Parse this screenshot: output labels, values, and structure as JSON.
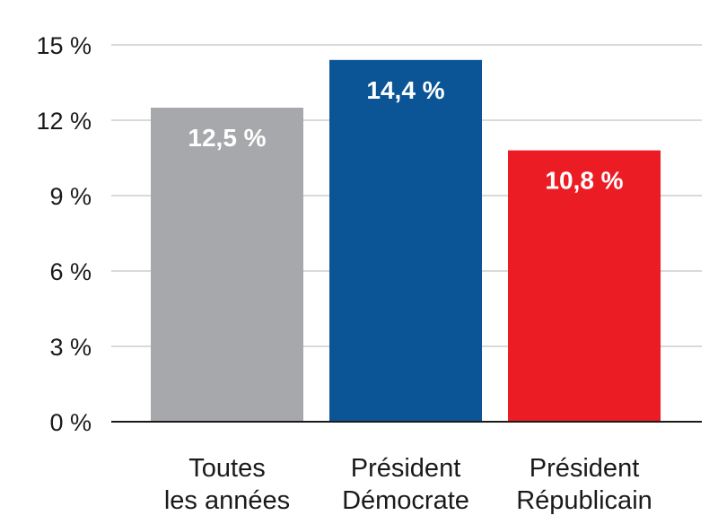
{
  "chart_data": {
    "type": "bar",
    "categories": [
      [
        "Toutes",
        "les années"
      ],
      [
        "Président",
        "Démocrate"
      ],
      [
        "Président",
        "Républicain"
      ]
    ],
    "values": [
      12.5,
      14.4,
      10.8
    ],
    "data_labels": [
      "12,5 %",
      "14,4 %",
      "10,8 %"
    ],
    "bar_colors": [
      "#a7a8ab",
      "#0b5597",
      "#ec1c24"
    ],
    "yticks": [
      {
        "value": 0,
        "label": "0 %"
      },
      {
        "value": 3,
        "label": "3 %"
      },
      {
        "value": 6,
        "label": "6 %"
      },
      {
        "value": 9,
        "label": "9 %"
      },
      {
        "value": 12,
        "label": "12 %"
      },
      {
        "value": 15,
        "label": "15 %"
      }
    ],
    "ylim": [
      0,
      15
    ],
    "grid": true,
    "title": "",
    "xlabel": "",
    "ylabel": ""
  }
}
